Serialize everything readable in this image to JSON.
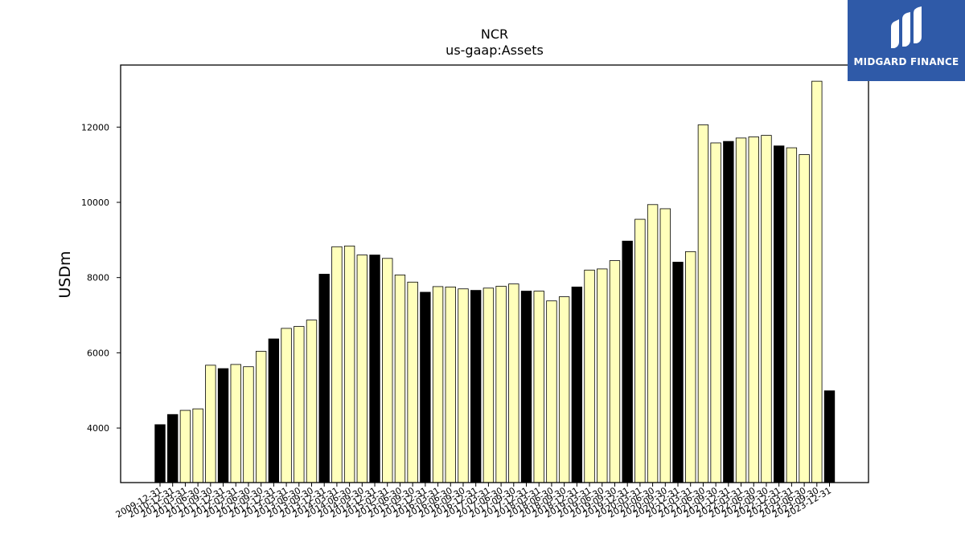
{
  "brand": {
    "name": "MIDGARD FINANCE",
    "bg_color": "#2f5aa8"
  },
  "chart_data": {
    "type": "bar",
    "title": "NCR",
    "subtitle": "us-gaap:Assets",
    "ylabel": "USDm",
    "xlabel": "",
    "ylim": [
      2550,
      13650
    ],
    "yticks": [
      4000,
      6000,
      8000,
      10000,
      12000
    ],
    "grid": false,
    "colors": {
      "annual": "#000000",
      "quarterly": "#ffffbb",
      "edge": "#000000"
    },
    "categories": [
      "2009-12-31",
      "2010-12-31",
      "2011-03-31",
      "2011-06-30",
      "2011-09-30",
      "2011-12-31",
      "2012-03-31",
      "2012-06-30",
      "2012-09-30",
      "2012-12-31",
      "2013-03-31",
      "2013-06-30",
      "2013-09-30",
      "2013-12-31",
      "2014-03-31",
      "2014-06-30",
      "2014-09-30",
      "2014-12-31",
      "2015-03-31",
      "2015-06-30",
      "2015-09-30",
      "2015-12-31",
      "2016-03-31",
      "2016-06-30",
      "2016-09-30",
      "2016-12-31",
      "2017-03-31",
      "2017-06-30",
      "2017-09-30",
      "2017-12-31",
      "2018-03-31",
      "2018-06-30",
      "2018-09-30",
      "2018-12-31",
      "2019-03-31",
      "2019-06-30",
      "2019-09-30",
      "2019-12-31",
      "2020-03-31",
      "2020-06-30",
      "2020-09-30",
      "2020-12-31",
      "2021-03-31",
      "2021-06-30",
      "2021-09-30",
      "2021-12-31",
      "2022-03-31",
      "2022-06-30",
      "2022-09-30",
      "2022-12-31",
      "2023-03-31",
      "2023-06-30",
      "2023-09-30",
      "2023-12-31"
    ],
    "values": [
      4090,
      4360,
      4470,
      4510,
      5670,
      5580,
      5690,
      5630,
      6040,
      6370,
      6650,
      6700,
      6870,
      8090,
      8820,
      8840,
      8600,
      8600,
      8510,
      8070,
      7880,
      7610,
      7760,
      7750,
      7700,
      7660,
      7720,
      7770,
      7830,
      7640,
      7640,
      7380,
      7490,
      7750,
      8200,
      8230,
      8450,
      8970,
      9550,
      9940,
      9830,
      8410,
      8690,
      12060,
      11580,
      11620,
      11710,
      11740,
      11780,
      11500,
      11450,
      11270,
      13220,
      4990
    ],
    "annual": [
      true,
      true,
      false,
      false,
      false,
      true,
      false,
      false,
      false,
      true,
      false,
      false,
      false,
      true,
      false,
      false,
      false,
      true,
      false,
      false,
      false,
      true,
      false,
      false,
      false,
      true,
      false,
      false,
      false,
      true,
      false,
      false,
      false,
      true,
      false,
      false,
      false,
      true,
      false,
      false,
      false,
      true,
      false,
      false,
      false,
      true,
      false,
      false,
      false,
      true,
      false,
      false,
      false,
      true
    ]
  }
}
